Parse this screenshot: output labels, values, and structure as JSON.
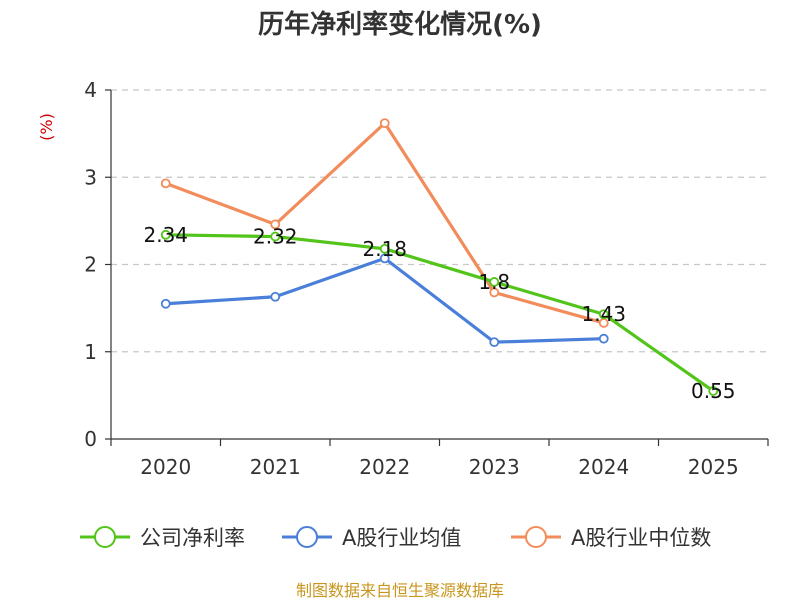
{
  "chart_data": {
    "type": "line",
    "title": "历年净利率变化情况(%)",
    "ylabel": "(%)",
    "xlabel": "",
    "categories": [
      "2020",
      "2021",
      "2022",
      "2023",
      "2024",
      "2025"
    ],
    "ylim": [
      0,
      4
    ],
    "yticks": [
      "0",
      "1",
      "2",
      "3",
      "4"
    ],
    "grid": true,
    "legend_position": "bottom",
    "series": [
      {
        "name": "公司净利率",
        "color": "#52c41a",
        "values": [
          2.34,
          2.32,
          2.18,
          1.8,
          1.43,
          0.55
        ],
        "labels": [
          "2.34",
          "2.32",
          "2.18",
          "1.8",
          "1.43",
          "0.55"
        ]
      },
      {
        "name": "A股行业均值",
        "color": "#4a7fd9",
        "values": [
          1.55,
          1.63,
          2.07,
          1.11,
          1.15,
          null
        ],
        "labels": []
      },
      {
        "name": "A股行业中位数",
        "color": "#f28c5a",
        "values": [
          2.93,
          2.46,
          3.62,
          1.68,
          1.33,
          null
        ],
        "labels": []
      }
    ]
  },
  "source": "制图数据来自恒生聚源数据库"
}
